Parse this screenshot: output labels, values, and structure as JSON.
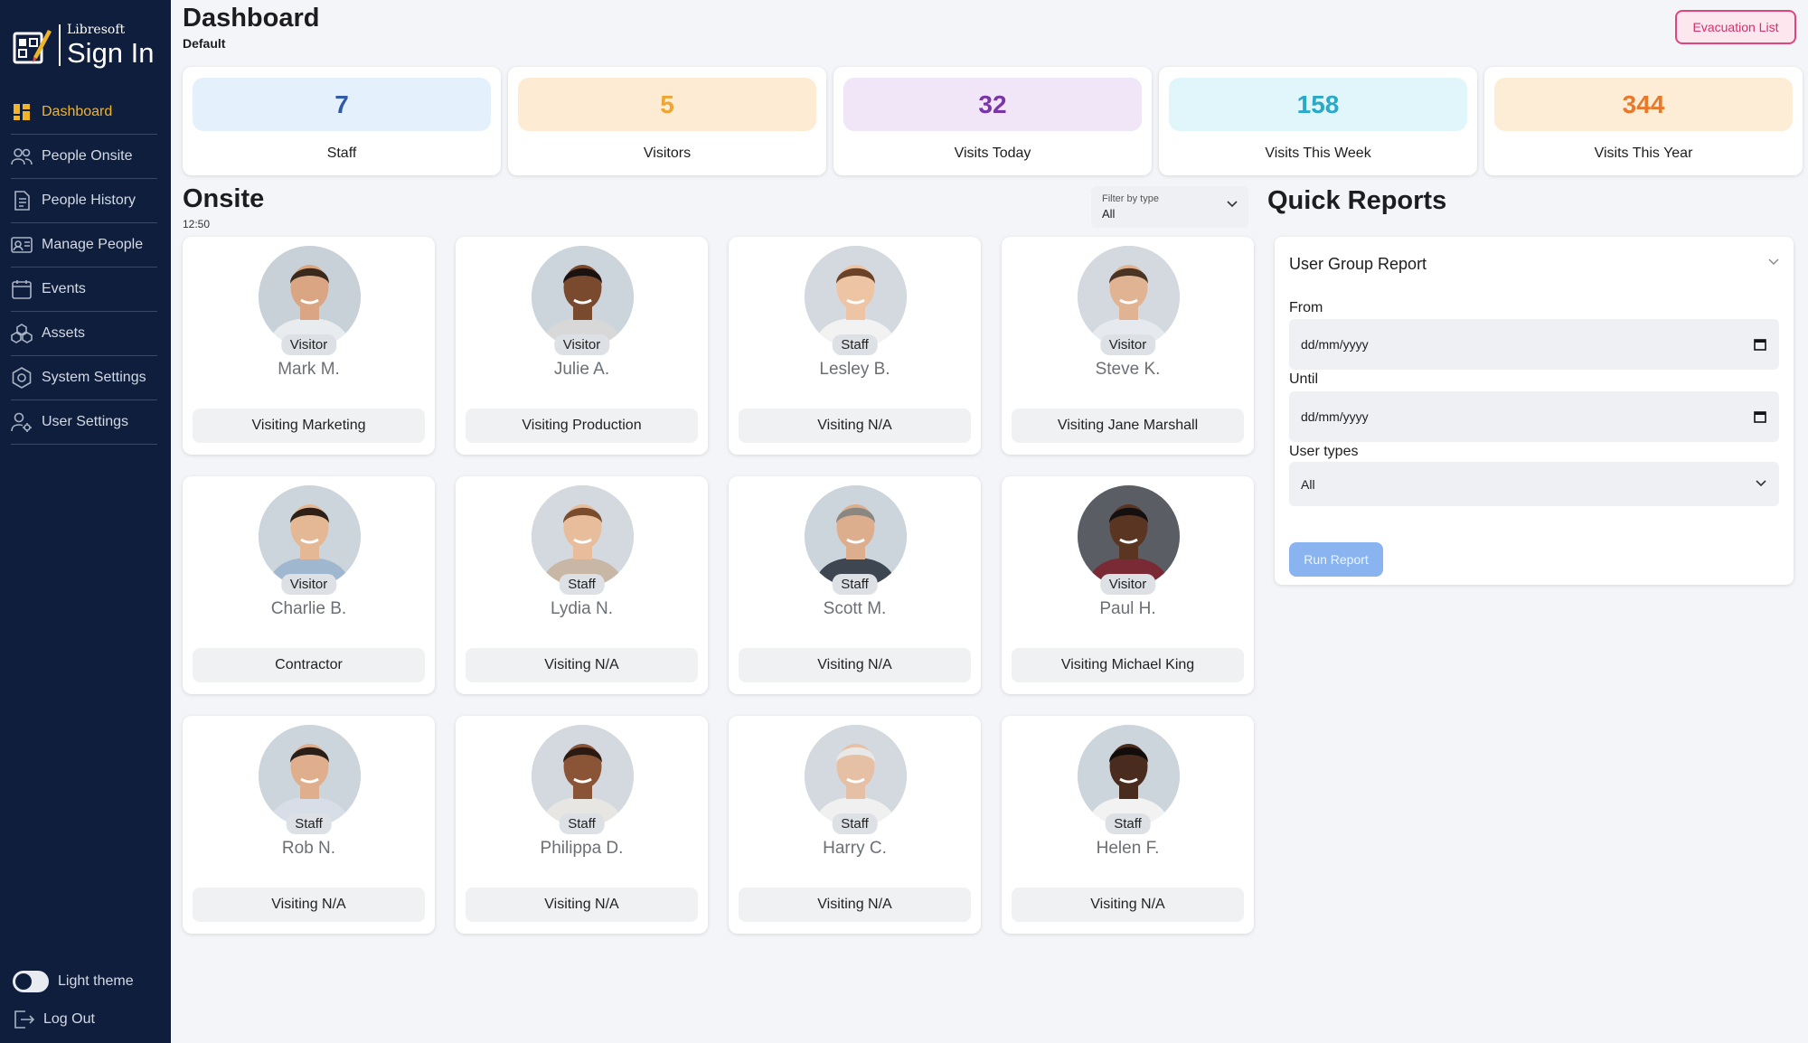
{
  "brand": {
    "small": "Libresoft",
    "big": "Sign In"
  },
  "sidebar": {
    "items": [
      {
        "label": "Dashboard",
        "icon": "dashboard-icon",
        "active": true
      },
      {
        "label": "People Onsite",
        "icon": "people-icon"
      },
      {
        "label": "People History",
        "icon": "document-icon"
      },
      {
        "label": "Manage People",
        "icon": "id-card-icon"
      },
      {
        "label": "Events",
        "icon": "calendar-icon"
      },
      {
        "label": "Assets",
        "icon": "cubes-icon"
      },
      {
        "label": "System Settings",
        "icon": "settings-icon"
      },
      {
        "label": "User Settings",
        "icon": "user-gear-icon"
      }
    ],
    "theme_label": "Light theme",
    "logout_label": "Log Out"
  },
  "header": {
    "title": "Dashboard",
    "subtitle": "Default",
    "evacuation_label": "Evacuation List"
  },
  "stats": [
    {
      "value": "7",
      "label": "Staff",
      "bg": "#e4f1fd",
      "color": "#2e5aa8"
    },
    {
      "value": "5",
      "label": "Visitors",
      "bg": "#fdecd3",
      "color": "#f0a532"
    },
    {
      "value": "32",
      "label": "Visits Today",
      "bg": "#f1e5f8",
      "color": "#7a36a8"
    },
    {
      "value": "158",
      "label": "Visits This Week",
      "bg": "#e1f6fb",
      "color": "#2aa9c9"
    },
    {
      "value": "344",
      "label": "Visits This Year",
      "bg": "#fdecd6",
      "color": "#e8792a"
    }
  ],
  "onsite": {
    "title": "Onsite",
    "time": "12:50",
    "filter_label": "Filter by type",
    "filter_value": "All",
    "people": [
      {
        "type": "Visitor",
        "name": "Mark M.",
        "visiting": "Visiting Marketing",
        "skin": "#d9a582",
        "hair": "#3a2a1e",
        "bg": "#c9d1d8",
        "shirt": "#e8ecef"
      },
      {
        "type": "Visitor",
        "name": "Julie A.",
        "visiting": "Visiting Production",
        "skin": "#7a4a2e",
        "hair": "#1a1210",
        "bg": "#cdd5dc",
        "shirt": "#d8d8d8"
      },
      {
        "type": "Staff",
        "name": "Lesley B.",
        "visiting": "Visiting N/A",
        "skin": "#edc4a4",
        "hair": "#6b4128",
        "bg": "#d3d9df",
        "shirt": "#f2f2f2"
      },
      {
        "type": "Visitor",
        "name": "Steve K.",
        "visiting": "Visiting Jane Marshall",
        "skin": "#e0b393",
        "hair": "#4a3424",
        "bg": "#d3d9df",
        "shirt": "#e6eaee"
      },
      {
        "type": "Visitor",
        "name": "Charlie B.",
        "visiting": "Contractor",
        "skin": "#e4b795",
        "hair": "#2e2016",
        "bg": "#cdd5dc",
        "shirt": "#9fb7cf"
      },
      {
        "type": "Staff",
        "name": "Lydia N.",
        "visiting": "Visiting N/A",
        "skin": "#e8bd9c",
        "hair": "#7a4c2e",
        "bg": "#d3d9df",
        "shirt": "#c9b7a6"
      },
      {
        "type": "Staff",
        "name": "Scott M.",
        "visiting": "Visiting N/A",
        "skin": "#dcae8e",
        "hair": "#8a8680",
        "bg": "#cdd5dc",
        "shirt": "#3e4652"
      },
      {
        "type": "Visitor",
        "name": "Paul H.",
        "visiting": "Visiting Michael King",
        "skin": "#5a3522",
        "hair": "#151010",
        "bg": "#5a5e64",
        "shirt": "#7a2a34"
      },
      {
        "type": "Staff",
        "name": "Rob N.",
        "visiting": "Visiting N/A",
        "skin": "#dfae8c",
        "hair": "#2a1e18",
        "bg": "#cdd5dc",
        "shirt": "#d7dee8"
      },
      {
        "type": "Staff",
        "name": "Philippa D.",
        "visiting": "Visiting N/A",
        "skin": "#8a5536",
        "hair": "#2a1a12",
        "bg": "#d3d9df",
        "shirt": "#e8e6e2"
      },
      {
        "type": "Staff",
        "name": "Harry C.",
        "visiting": "Visiting N/A",
        "skin": "#e6c0a4",
        "hair": "#e8e8e8",
        "bg": "#d3d9df",
        "shirt": "#f0f0f0"
      },
      {
        "type": "Staff",
        "name": "Helen F.",
        "visiting": "Visiting N/A",
        "skin": "#4a2c1e",
        "hair": "#120c0a",
        "bg": "#cdd5dc",
        "shirt": "#f2f2f2"
      }
    ]
  },
  "quick_reports": {
    "title": "Quick Reports",
    "report_name": "User Group Report",
    "from_label": "From",
    "from_placeholder": "dd/mm/yyyy",
    "until_label": "Until",
    "until_placeholder": "dd/mm/yyyy",
    "user_types_label": "User types",
    "user_types_value": "All",
    "run_label": "Run Report"
  }
}
